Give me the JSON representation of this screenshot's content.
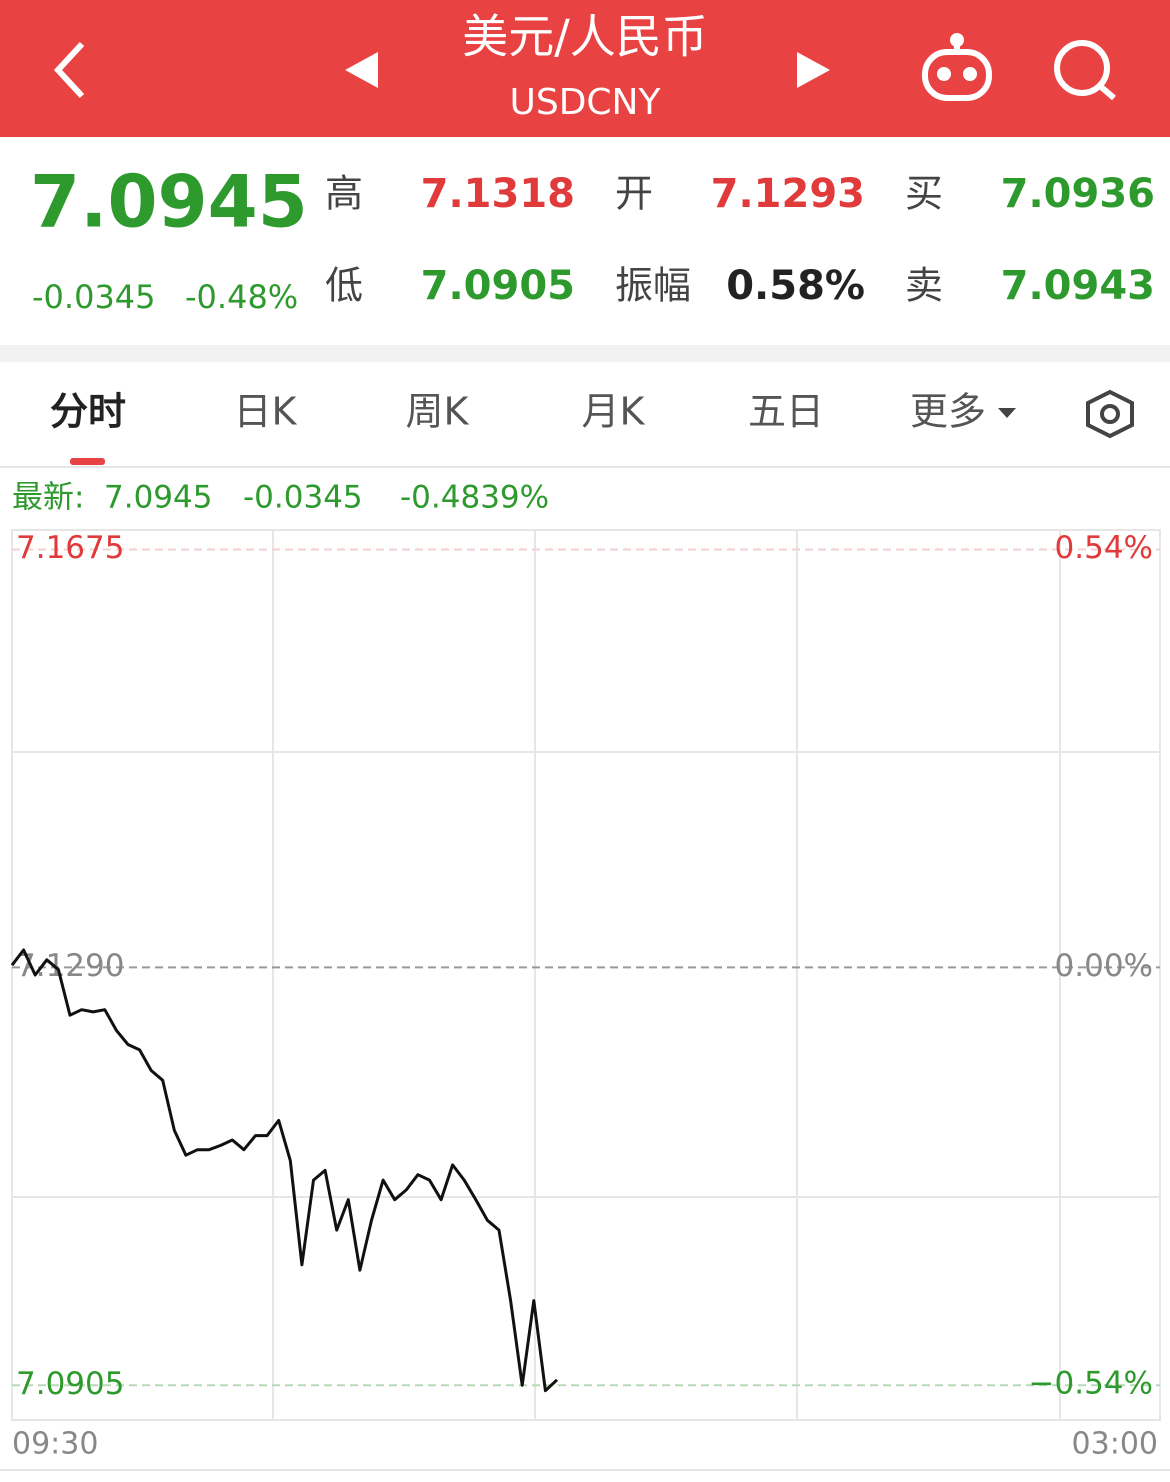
{
  "header": {
    "title": "美元/人民币",
    "subtitle": "USDCNY"
  },
  "quote": {
    "price": "7.0945",
    "change": "-0.0345",
    "change_pct": "-0.48%",
    "fields": [
      {
        "label": "高",
        "value": "7.1318"
      },
      {
        "label": "开",
        "value": "7.1293"
      },
      {
        "label": "买",
        "value": "7.0936"
      },
      {
        "label": "低",
        "value": "7.0905"
      },
      {
        "label": "振幅",
        "value": "0.58%"
      },
      {
        "label": "卖",
        "value": "7.0943"
      }
    ]
  },
  "tabs": [
    "分时",
    "日K",
    "周K",
    "月K",
    "五日",
    "更多"
  ],
  "latest": {
    "label": "最新:",
    "price": "7.0945",
    "change": "-0.0345",
    "change_pct": "-0.4839%"
  },
  "chart_data": {
    "type": "line",
    "color": "#111111",
    "categories": [
      "09:30",
      null,
      null,
      null,
      null,
      null,
      null,
      null,
      null,
      null,
      null,
      null,
      null,
      null,
      null,
      null,
      null,
      null,
      null,
      null,
      null,
      null,
      null,
      null,
      null,
      null,
      null,
      null,
      null,
      null,
      null,
      null,
      null,
      null,
      null,
      null,
      null,
      null,
      null,
      null,
      null,
      null,
      null,
      null,
      null,
      null,
      null,
      null,
      null,
      null,
      null,
      null,
      null,
      null,
      null,
      null,
      null,
      null,
      null,
      null,
      null,
      null,
      null,
      null,
      null,
      null,
      null,
      null,
      null,
      null,
      null,
      null,
      null,
      null,
      null,
      null,
      null,
      null,
      null,
      null,
      null,
      null,
      null,
      null,
      null,
      null,
      null,
      null,
      null,
      null,
      null,
      null,
      null,
      null,
      null,
      null,
      null,
      null,
      null,
      "03:00"
    ],
    "values": [
      7.1292,
      7.1306,
      7.1283,
      7.1297,
      7.1288,
      7.1246,
      7.1251,
      7.1249,
      7.1251,
      7.1232,
      7.1219,
      7.1214,
      7.1195,
      7.1186,
      7.114,
      7.1117,
      7.1122,
      7.1122,
      7.1126,
      7.1131,
      7.1122,
      7.1135,
      7.1135,
      7.1149,
      7.1112,
      7.1016,
      7.1094,
      7.1103,
      7.1048,
      7.1076,
      7.1011,
      7.1057,
      7.1094,
      7.1076,
      7.1085,
      7.1099,
      7.1094,
      7.1076,
      7.1108,
      7.1094,
      7.1076,
      7.1057,
      7.1048,
      7.0983,
      7.0905,
      7.0983,
      7.09,
      7.091,
      null,
      null,
      null,
      null,
      null,
      null,
      null,
      null,
      null,
      null,
      null,
      null,
      null,
      null,
      null,
      null,
      null,
      null,
      null,
      null,
      null,
      null,
      null,
      null,
      null,
      null,
      null,
      null,
      null,
      null,
      null,
      null,
      null,
      null,
      null,
      null,
      null,
      null,
      null,
      null,
      null,
      null,
      null,
      null,
      null,
      null,
      null,
      null,
      null,
      null,
      null,
      null
    ],
    "ylim": [
      7.0873,
      7.1693
    ],
    "yticks": [
      7.1675,
      {
        "value": 7.129,
        "label": "7.1290"
      },
      7.0905
    ],
    "y2lim": [
      -0.585,
      0.565
    ],
    "y2ticks": [
      {
        "value": 0.54,
        "label": "0.54%"
      },
      {
        "value": 0,
        "label": "0.00%"
      },
      {
        "value": -0.54,
        "label": "−0.54%"
      }
    ]
  }
}
